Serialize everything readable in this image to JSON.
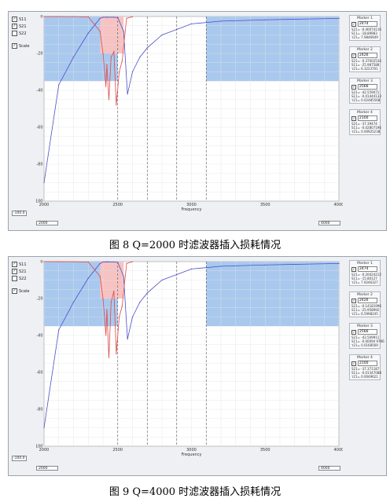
{
  "figures": [
    {
      "caption": "图 8 Q=2000 时滤波器插入损耗情况",
      "checkboxes": [
        {
          "label": "S11",
          "checked": true
        },
        {
          "label": "S21",
          "checked": true
        },
        {
          "label": "S22",
          "checked": false
        },
        {
          "label": "Scale",
          "checked": true
        }
      ],
      "x_label": "Frequency",
      "x_ticks": [
        "2000",
        "2500",
        "3000",
        "3500",
        "4000"
      ],
      "y_ticks": [
        "0",
        "-20",
        "-40",
        "-60",
        "-80",
        "-100"
      ],
      "y_scale_value": "-100.0",
      "bottom_left_value": "2000",
      "bottom_right_value": "4000",
      "markers": [
        {
          "title": "Marker 1",
          "freq": "2474",
          "lines": [
            "S21= -0.40074116",
            "S11= -18.89983",
            "τ21= 7.9846949"
          ]
        },
        {
          "title": "Marker 2",
          "freq": "2426",
          "lines": [
            "S21= -0.37002534",
            "S11= -25.987588",
            "τ21= 6.3223701"
          ]
        },
        {
          "title": "Marker 3",
          "freq": "2566",
          "lines": [
            "S21= -42.559071",
            "S11= -0.01444133",
            "τ21= 0.02485568"
          ]
        },
        {
          "title": "Marker 4",
          "freq": "2100",
          "lines": [
            "S21= -37.39474",
            "S11= -0.02807196",
            "τ21= 0.00925238"
          ]
        }
      ]
    },
    {
      "caption": "图 9 Q=4000 时滤波器插入损耗情况",
      "checkboxes": [
        {
          "label": "S11",
          "checked": true
        },
        {
          "label": "S21",
          "checked": true
        },
        {
          "label": "S22",
          "checked": false
        },
        {
          "label": "Scale",
          "checked": true
        }
      ],
      "x_label": "Frequency",
      "x_ticks": [
        "2000",
        "2500",
        "3000",
        "3500",
        "4000"
      ],
      "y_ticks": [
        "0",
        "-20",
        "-40",
        "-60",
        "-80",
        "-100"
      ],
      "y_scale_value": "-100.0",
      "bottom_left_value": "2000",
      "bottom_right_value": "4000",
      "markers": [
        {
          "title": "Marker 1",
          "freq": "2474",
          "lines": [
            "S21= -0.20024212",
            "S11= -15.80127",
            "τ21= 7.9246327"
          ]
        },
        {
          "title": "Marker 2",
          "freq": "2426",
          "lines": [
            "S21= -0.14181996",
            "S11= -25.958992",
            "τ21= 6.5998245"
          ]
        },
        {
          "title": "Marker 3",
          "freq": "2566",
          "lines": [
            "S21= -42.509911",
            "S11= -0.00094 9766",
            "τ21= 0.0168569"
          ]
        },
        {
          "title": "Marker 4",
          "freq": "2100",
          "lines": [
            "S21= -37.371187",
            "S11= -0.01347088",
            "τ21= 0.0049621"
          ]
        }
      ]
    }
  ],
  "chart_data": [
    {
      "type": "line",
      "xlabel": "Frequency",
      "xlim": [
        2000,
        4000
      ],
      "ylim": [
        -100,
        0
      ],
      "grid": true,
      "series": [
        {
          "name": "S21",
          "x": [
            2000,
            2100,
            2200,
            2300,
            2350,
            2380,
            2400,
            2426,
            2474,
            2500,
            2540,
            2566,
            2600,
            2650,
            2700,
            2800,
            2900,
            3000,
            3200,
            3500,
            4000
          ],
          "values": [
            -90,
            -37,
            -22,
            -9,
            -4,
            -1,
            -0.4,
            -0.37,
            -0.4,
            -0.6,
            -8,
            -42,
            -30,
            -22,
            -17,
            -10,
            -7,
            -4,
            -2.5,
            -1.8,
            -1
          ]
        },
        {
          "name": "S11",
          "x": [
            2000,
            2100,
            2200,
            2300,
            2380,
            2400,
            2420,
            2426,
            2440,
            2455,
            2474,
            2490,
            2510,
            2530,
            2560,
            2600
          ],
          "values": [
            -0.02,
            -0.03,
            -0.05,
            -0.2,
            -8,
            -20,
            -38,
            -26,
            -45,
            -22,
            -19,
            -48,
            -30,
            -24,
            -1,
            -0.1
          ]
        }
      ]
    },
    {
      "type": "line",
      "xlabel": "Frequency",
      "xlim": [
        2000,
        4000
      ],
      "ylim": [
        -100,
        0
      ],
      "grid": true,
      "series": [
        {
          "name": "S21",
          "x": [
            2000,
            2100,
            2200,
            2300,
            2350,
            2380,
            2400,
            2426,
            2474,
            2500,
            2540,
            2566,
            2600,
            2650,
            2700,
            2800,
            2900,
            3000,
            3200,
            3500,
            4000
          ],
          "values": [
            -90,
            -37,
            -22,
            -9,
            -4,
            -1,
            -0.2,
            -0.14,
            -0.2,
            -0.4,
            -8,
            -42,
            -30,
            -22,
            -17,
            -10,
            -7,
            -4,
            -2.5,
            -1.8,
            -1
          ]
        },
        {
          "name": "S11",
          "x": [
            2000,
            2100,
            2200,
            2300,
            2380,
            2400,
            2420,
            2426,
            2440,
            2455,
            2474,
            2490,
            2510,
            2530,
            2560,
            2600
          ],
          "values": [
            -0.01,
            -0.02,
            -0.04,
            -0.2,
            -8,
            -20,
            -40,
            -26,
            -52,
            -22,
            -16,
            -50,
            -30,
            -24,
            -1,
            -0.1
          ]
        }
      ]
    }
  ]
}
